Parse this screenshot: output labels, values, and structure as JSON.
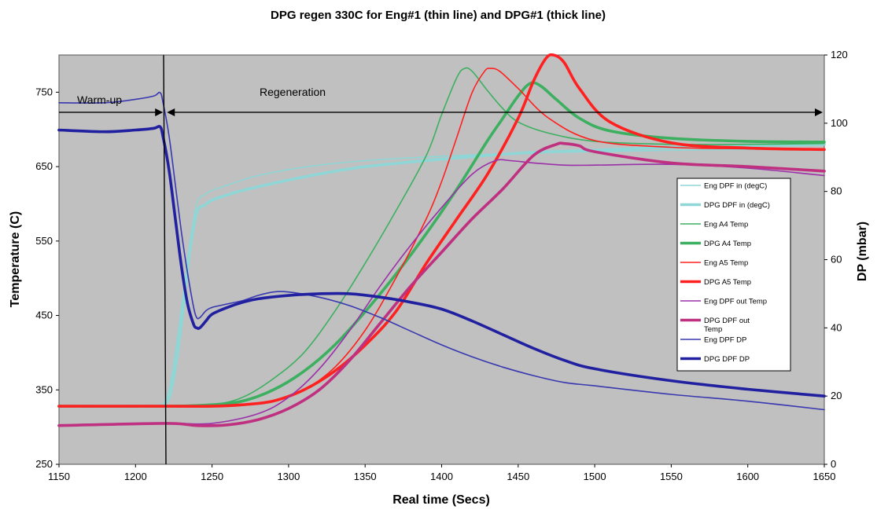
{
  "chart_data": {
    "type": "line",
    "title": "DPG regen 330C for Eng#1 (thin line) and DPG#1 (thick line)",
    "xlabel": "Real time (Secs)",
    "ylabel": "Temperature (C)",
    "y2label": "DP (mbar)",
    "xlim": [
      1150,
      1650
    ],
    "ylim": [
      250,
      800
    ],
    "y2lim": [
      0,
      120
    ],
    "xticks": [
      1150,
      1200,
      1250,
      1300,
      1350,
      1400,
      1450,
      1500,
      1550,
      1600,
      1650
    ],
    "yticks": [
      250,
      350,
      450,
      550,
      650,
      750
    ],
    "y2ticks": [
      0,
      20,
      40,
      60,
      80,
      100,
      120
    ],
    "grid": false,
    "background": "#c0c0c0",
    "legend_position": "right",
    "annotations": {
      "warmup": "Warm-up",
      "regeneration": "Regeneration",
      "divider_x": 1220,
      "arrow_y": 723
    },
    "series": [
      {
        "name": "Eng DPF in (degC)",
        "color": "#8fd6d6",
        "thick": false,
        "axis": "left",
        "x": [
          1150,
          1215,
          1218,
          1222,
          1226,
          1230,
          1235,
          1240,
          1245,
          1250,
          1260,
          1270,
          1280,
          1300,
          1320,
          1350,
          1400,
          1450,
          1500,
          1550,
          1600,
          1650
        ],
        "y": [
          328,
          328,
          330,
          350,
          400,
          460,
          540,
          600,
          612,
          618,
          625,
          632,
          638,
          646,
          652,
          658,
          664,
          668,
          670,
          672,
          673,
          674
        ]
      },
      {
        "name": "DPG DPF in (degC)",
        "color": "#8fd6d6",
        "thick": true,
        "axis": "left",
        "x": [
          1150,
          1215,
          1218,
          1222,
          1226,
          1230,
          1235,
          1240,
          1245,
          1250,
          1260,
          1270,
          1280,
          1300,
          1320,
          1350,
          1400,
          1450,
          1500,
          1550,
          1600,
          1650
        ],
        "y": [
          328,
          328,
          330,
          340,
          380,
          440,
          530,
          588,
          598,
          605,
          612,
          618,
          623,
          632,
          640,
          650,
          660,
          668,
          672,
          676,
          678,
          680
        ]
      },
      {
        "name": "Eng A4 Temp",
        "color": "#3cb060",
        "thick": false,
        "axis": "left",
        "x": [
          1150,
          1220,
          1250,
          1270,
          1290,
          1310,
          1330,
          1350,
          1370,
          1390,
          1400,
          1410,
          1415,
          1420,
          1430,
          1440,
          1450,
          1470,
          1500,
          1550,
          1600,
          1650
        ],
        "y": [
          328,
          328,
          330,
          340,
          365,
          400,
          455,
          520,
          590,
          665,
          720,
          770,
          782,
          778,
          752,
          728,
          710,
          695,
          684,
          680,
          680,
          681
        ]
      },
      {
        "name": "DPG A4 Temp",
        "color": "#3cb060",
        "thick": true,
        "axis": "left",
        "x": [
          1150,
          1220,
          1250,
          1270,
          1290,
          1310,
          1330,
          1350,
          1370,
          1390,
          1410,
          1430,
          1440,
          1450,
          1458,
          1465,
          1475,
          1490,
          1510,
          1550,
          1600,
          1650
        ],
        "y": [
          328,
          328,
          330,
          335,
          350,
          375,
          410,
          455,
          505,
          560,
          620,
          685,
          715,
          745,
          762,
          758,
          740,
          715,
          698,
          688,
          684,
          683
        ]
      },
      {
        "name": "Eng A5 Temp",
        "color": "#ff2020",
        "thick": false,
        "axis": "left",
        "x": [
          1150,
          1220,
          1250,
          1270,
          1290,
          1310,
          1330,
          1350,
          1370,
          1390,
          1400,
          1410,
          1420,
          1428,
          1432,
          1438,
          1450,
          1470,
          1500,
          1550,
          1600,
          1650
        ],
        "y": [
          328,
          328,
          328,
          330,
          335,
          350,
          380,
          430,
          500,
          580,
          630,
          690,
          750,
          778,
          782,
          778,
          755,
          715,
          685,
          676,
          674,
          673
        ]
      },
      {
        "name": "DPG A5 Temp",
        "color": "#ff2020",
        "thick": true,
        "axis": "left",
        "x": [
          1150,
          1220,
          1250,
          1270,
          1290,
          1310,
          1330,
          1350,
          1370,
          1390,
          1410,
          1430,
          1450,
          1460,
          1468,
          1473,
          1480,
          1490,
          1510,
          1550,
          1600,
          1650
        ],
        "y": [
          328,
          328,
          328,
          330,
          335,
          350,
          375,
          410,
          455,
          520,
          580,
          640,
          715,
          765,
          795,
          800,
          790,
          755,
          710,
          682,
          675,
          673
        ]
      },
      {
        "name": "Eng DPF out Temp",
        "color": "#9b30a8",
        "thick": false,
        "axis": "left",
        "x": [
          1150,
          1220,
          1250,
          1280,
          1300,
          1320,
          1340,
          1360,
          1380,
          1400,
          1420,
          1435,
          1445,
          1460,
          1480,
          1500,
          1550,
          1600,
          1650
        ],
        "y": [
          302,
          305,
          305,
          318,
          340,
          378,
          430,
          490,
          545,
          595,
          640,
          658,
          658,
          655,
          652,
          652,
          653,
          648,
          638
        ]
      },
      {
        "name": "DPG DPF out Temp",
        "color": "#c03080",
        "thick": true,
        "axis": "left",
        "x": [
          1150,
          1220,
          1240,
          1260,
          1280,
          1300,
          1320,
          1340,
          1360,
          1380,
          1400,
          1420,
          1440,
          1460,
          1475,
          1480,
          1490,
          1500,
          1550,
          1600,
          1650
        ],
        "y": [
          302,
          305,
          302,
          303,
          310,
          325,
          350,
          390,
          440,
          490,
          535,
          580,
          620,
          665,
          680,
          681,
          678,
          670,
          655,
          650,
          644
        ]
      },
      {
        "name": "Eng DPF DP",
        "color": "#3838b0",
        "thick": false,
        "axis": "right",
        "x": [
          1150,
          1180,
          1200,
          1212,
          1216,
          1218,
          1222,
          1226,
          1230,
          1234,
          1238,
          1240,
          1242,
          1246,
          1250,
          1260,
          1270,
          1280,
          1290,
          1300,
          1320,
          1340,
          1360,
          1380,
          1400,
          1420,
          1440,
          1460,
          1480,
          1500,
          1550,
          1600,
          1650
        ],
        "y": [
          106,
          106,
          107,
          108,
          109,
          106,
          96,
          82,
          68,
          56,
          46,
          43,
          43,
          45,
          46,
          47,
          48,
          49.5,
          50.5,
          50.5,
          49,
          46.5,
          43,
          39,
          35,
          31.5,
          28.5,
          26,
          24,
          23,
          20.5,
          18.5,
          16
        ]
      },
      {
        "name": "DPG DPF DP",
        "color": "#2020a0",
        "thick": true,
        "axis": "right",
        "x": [
          1150,
          1180,
          1200,
          1212,
          1216,
          1218,
          1222,
          1226,
          1230,
          1234,
          1238,
          1240,
          1242,
          1246,
          1250,
          1260,
          1270,
          1280,
          1300,
          1320,
          1340,
          1360,
          1380,
          1400,
          1420,
          1440,
          1460,
          1480,
          1500,
          1550,
          1600,
          1650
        ],
        "y": [
          98,
          97.5,
          98,
          98.5,
          99,
          96,
          86,
          72,
          58,
          47,
          41,
          40,
          40,
          42,
          44,
          46,
          47.5,
          48.5,
          49.5,
          50,
          50,
          49,
          47.5,
          45.5,
          42,
          38,
          34,
          30.5,
          28,
          24.5,
          22,
          20
        ]
      }
    ]
  }
}
